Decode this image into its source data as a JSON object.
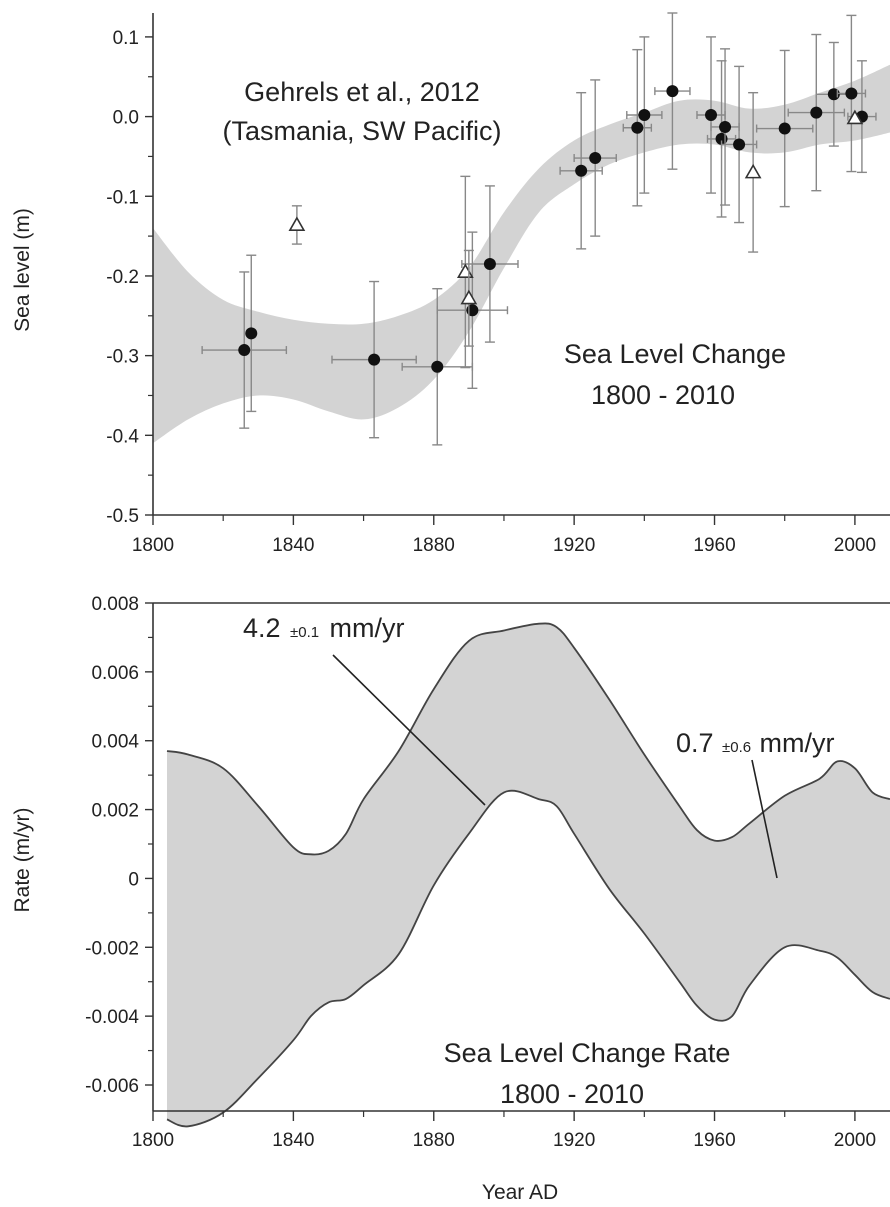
{
  "chart_data": [
    {
      "type": "scatter",
      "ylabel": "Sea level (m)",
      "xlabel": "",
      "xlim": [
        1800,
        2010
      ],
      "ylim": [
        -0.5,
        0.13
      ],
      "x_ticks": [
        "1800",
        "1840",
        "1880",
        "1920",
        "1960",
        "2000"
      ],
      "y_ticks": [
        "0.1",
        "0.0",
        "-0.1",
        "-0.2",
        "-0.3",
        "-0.4",
        "-0.5"
      ],
      "annotations": {
        "source_line1": "Gehrels et al., 2012",
        "source_line2": "(Tasmania, SW Pacific)",
        "title_line1": "Sea Level Change",
        "title_line2": "1800 - 2010"
      },
      "band": {
        "x": [
          1800,
          1810,
          1820,
          1830,
          1840,
          1850,
          1860,
          1870,
          1880,
          1890,
          1900,
          1910,
          1920,
          1930,
          1940,
          1950,
          1960,
          1970,
          1980,
          1990,
          2000,
          2010
        ],
        "upper": [
          -0.14,
          -0.195,
          -0.23,
          -0.245,
          -0.255,
          -0.26,
          -0.26,
          -0.25,
          -0.23,
          -0.19,
          -0.12,
          -0.065,
          -0.03,
          -0.01,
          0.005,
          0.02,
          0.02,
          0.01,
          0.015,
          0.03,
          0.045,
          0.065
        ],
        "lower": [
          -0.41,
          -0.38,
          -0.36,
          -0.35,
          -0.355,
          -0.37,
          -0.38,
          -0.365,
          -0.33,
          -0.27,
          -0.19,
          -0.12,
          -0.085,
          -0.06,
          -0.045,
          -0.035,
          -0.035,
          -0.045,
          -0.045,
          -0.035,
          -0.03,
          -0.02
        ]
      },
      "series": [
        {
          "name": "",
          "marker": "filled-circle",
          "points": [
            {
              "x": 1826,
              "y": -0.293,
              "xerr": 12,
              "yerr": 0.098
            },
            {
              "x": 1828,
              "y": -0.272,
              "xerr": 0,
              "yerr": 0.098
            },
            {
              "x": 1863,
              "y": -0.305,
              "xerr": 12,
              "yerr": 0.098
            },
            {
              "x": 1881,
              "y": -0.314,
              "xerr": 10,
              "yerr": 0.098
            },
            {
              "x": 1891,
              "y": -0.243,
              "xerr": 10,
              "yerr": 0.098
            },
            {
              "x": 1896,
              "y": -0.185,
              "xerr": 8,
              "yerr": 0.098
            },
            {
              "x": 1922,
              "y": -0.068,
              "xerr": 6,
              "yerr": 0.098
            },
            {
              "x": 1926,
              "y": -0.052,
              "xerr": 6,
              "yerr": 0.098
            },
            {
              "x": 1938,
              "y": -0.014,
              "xerr": 4,
              "yerr": 0.098
            },
            {
              "x": 1940,
              "y": 0.002,
              "xerr": 5,
              "yerr": 0.098
            },
            {
              "x": 1948,
              "y": 0.032,
              "xerr": 5,
              "yerr": 0.098
            },
            {
              "x": 1959,
              "y": 0.002,
              "xerr": 4,
              "yerr": 0.098
            },
            {
              "x": 1962,
              "y": -0.028,
              "xerr": 4,
              "yerr": 0.098
            },
            {
              "x": 1963,
              "y": -0.013,
              "xerr": 4,
              "yerr": 0.098
            },
            {
              "x": 1967,
              "y": -0.035,
              "xerr": 5,
              "yerr": 0.098
            },
            {
              "x": 1980,
              "y": -0.015,
              "xerr": 8,
              "yerr": 0.098
            },
            {
              "x": 1989,
              "y": 0.005,
              "xerr": 8,
              "yerr": 0.098
            },
            {
              "x": 1994,
              "y": 0.028,
              "xerr": 5,
              "yerr": 0.065
            },
            {
              "x": 1999,
              "y": 0.029,
              "xerr": 4,
              "yerr": 0.098
            },
            {
              "x": 2002,
              "y": 0.0,
              "xerr": 4,
              "yerr": 0.07
            }
          ]
        },
        {
          "name": "",
          "marker": "open-triangle",
          "points": [
            {
              "x": 1841,
              "y": -0.136,
              "yerr": 0.024
            },
            {
              "x": 1889,
              "y": -0.195,
              "yerr": 0.12
            },
            {
              "x": 1890,
              "y": -0.228,
              "yerr": 0.06
            },
            {
              "x": 1971,
              "y": -0.07,
              "yerr": 0.1
            },
            {
              "x": 2000,
              "y": -0.002,
              "yerr": 0.0
            }
          ]
        }
      ]
    },
    {
      "type": "area",
      "ylabel": "Rate (m/yr)",
      "xlabel": "Year AD",
      "xlim": [
        1800,
        2010
      ],
      "ylim": [
        -0.0072,
        0.008
      ],
      "x_ticks": [
        "1800",
        "1840",
        "1880",
        "1920",
        "1960",
        "2000"
      ],
      "y_ticks": [
        "0.008",
        "0.006",
        "0.004",
        "0.002",
        "0",
        "-0.002",
        "-0.004",
        "-0.006"
      ],
      "annotations": {
        "rate_left_value": "4.2",
        "rate_left_err": "±0.1",
        "rate_left_unit": "mm/yr",
        "rate_right_value": "0.7",
        "rate_right_err": "±0.6",
        "rate_right_unit": "mm/yr",
        "title_line1": "Sea Level Change Rate",
        "title_line2": "1800 - 2010"
      },
      "band": {
        "x": [
          1804,
          1810,
          1820,
          1830,
          1840,
          1845,
          1850,
          1855,
          1860,
          1870,
          1880,
          1890,
          1900,
          1910,
          1915,
          1920,
          1930,
          1940,
          1950,
          1955,
          1960,
          1965,
          1970,
          1980,
          1990,
          1995,
          2000,
          2005,
          2010
        ],
        "upper": [
          0.0037,
          0.0036,
          0.0032,
          0.0021,
          0.0009,
          0.0007,
          0.0008,
          0.0013,
          0.0023,
          0.0037,
          0.0055,
          0.0069,
          0.0072,
          0.0074,
          0.0073,
          0.0067,
          0.0052,
          0.0036,
          0.0021,
          0.0014,
          0.0011,
          0.0012,
          0.0016,
          0.0024,
          0.0029,
          0.0034,
          0.0032,
          0.0025,
          0.0023
        ],
        "lower": [
          -0.007,
          -0.0072,
          -0.0068,
          -0.0058,
          -0.0047,
          -0.004,
          -0.0036,
          -0.0035,
          -0.0031,
          -0.0022,
          -0.0002,
          0.0013,
          0.0025,
          0.0023,
          0.0021,
          0.0013,
          -0.0003,
          -0.0016,
          -0.003,
          -0.0037,
          -0.0041,
          -0.004,
          -0.0031,
          -0.002,
          -0.0021,
          -0.0023,
          -0.0028,
          -0.0033,
          -0.0035
        ]
      }
    }
  ]
}
